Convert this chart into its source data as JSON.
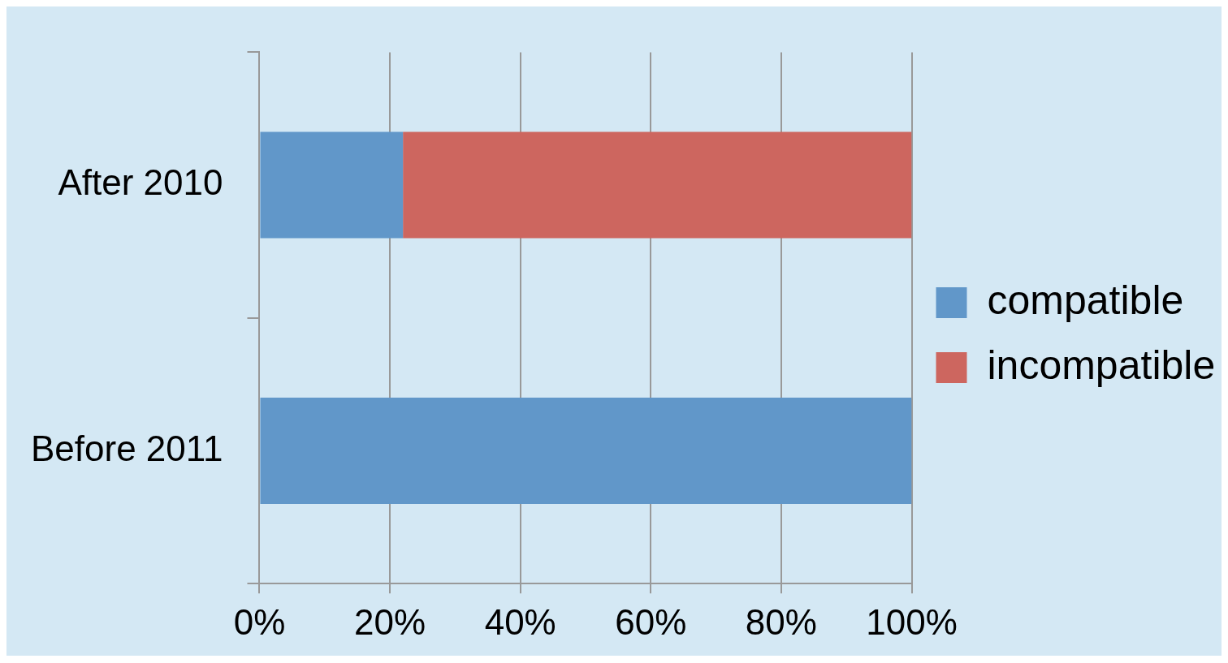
{
  "chart_data": {
    "type": "bar",
    "orientation": "horizontal",
    "stacked": true,
    "categories": [
      "After 2010",
      "Before 2011"
    ],
    "series": [
      {
        "name": "compatible",
        "color": "#6197c9",
        "values": [
          22,
          100
        ]
      },
      {
        "name": "incompatible",
        "color": "#cd665f",
        "values": [
          78,
          0
        ]
      }
    ],
    "xlim": [
      0,
      100
    ],
    "xticks": [
      {
        "value": 0,
        "label": "0%"
      },
      {
        "value": 20,
        "label": "20%"
      },
      {
        "value": 40,
        "label": "40%"
      },
      {
        "value": 60,
        "label": "60%"
      },
      {
        "value": 80,
        "label": "80%"
      },
      {
        "value": 100,
        "label": "100%"
      }
    ],
    "grid": "x",
    "legend": "right"
  }
}
